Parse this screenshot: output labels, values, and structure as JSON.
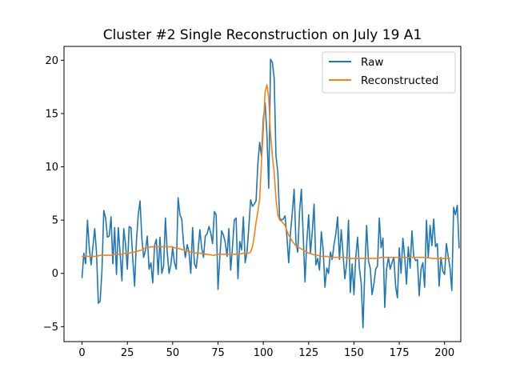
{
  "chart_data": {
    "type": "line",
    "title": "Cluster #2 Single Reconstruction on July 19 A1",
    "xlabel": "",
    "ylabel": "",
    "xlim": [
      -9.95,
      208.95
    ],
    "ylim": [
      -6.4,
      21.3
    ],
    "xticks": [
      0,
      25,
      50,
      75,
      100,
      125,
      150,
      175,
      200
    ],
    "yticks": [
      -5,
      0,
      5,
      10,
      15,
      20
    ],
    "ytick_labels": [
      "−5",
      "0",
      "5",
      "10",
      "15",
      "20"
    ],
    "grid": false,
    "legend_position": "top-right",
    "series": [
      {
        "name": "Raw",
        "color": "#1f77b4",
        "values": [
          -0.4,
          1.9,
          0.9,
          5.0,
          2.4,
          0.8,
          2.5,
          4.2,
          1.9,
          -2.8,
          -2.6,
          0.3,
          5.9,
          5.2,
          3.4,
          3.5,
          5.3,
          0.9,
          4.3,
          -0.1,
          4.3,
          1.9,
          -0.7,
          4.2,
          2.7,
          0.4,
          4.4,
          4.3,
          1.3,
          -1.2,
          3.0,
          5.5,
          6.8,
          3.3,
          1.5,
          2.2,
          3.5,
          0.4,
          1.0,
          -0.9,
          2.6,
          3.2,
          -0.1,
          3.4,
          0.0,
          0.7,
          5.2,
          2.0,
          0.0,
          0.8,
          2.4,
          1.0,
          0.4,
          7.1,
          5.5,
          5.1,
          2.8,
          1.5,
          2.7,
          2.0,
          0.0,
          4.3,
          0.9,
          0.5,
          2.1,
          4.1,
          2.4,
          1.5,
          3.5,
          3.7,
          4.4,
          3.8,
          2.8,
          5.8,
          5.5,
          -1.5,
          1.5,
          4.0,
          3.6,
          2.9,
          1.6,
          4.2,
          0.3,
          2.5,
          5.0,
          5.2,
          -0.5,
          3.0,
          2.2,
          5.3,
          1.0,
          2.0,
          4.3,
          6.9,
          6.3,
          6.5,
          6.8,
          10.3,
          12.3,
          11.0,
          14.5,
          16.0,
          13.0,
          8.0,
          20.1,
          19.8,
          18.3,
          11.0,
          9.5,
          5.2,
          5.0,
          5.1,
          5.4,
          3.5,
          1.0,
          3.8,
          5.7,
          7.9,
          2.9,
          2.0,
          5.8,
          7.9,
          3.6,
          -0.8,
          3.0,
          5.5,
          1.9,
          3.9,
          6.5,
          0.8,
          1.4,
          0.3,
          3.9,
          2.3,
          -1.3,
          0.5,
          0.0,
          2.0,
          1.3,
          2.7,
          3.7,
          5.3,
          1.3,
          4.1,
          1.8,
          -0.5,
          1.0,
          5.0,
          -1.8,
          0.9,
          -2.0,
          1.5,
          3.4,
          0.5,
          -0.9,
          -5.1,
          0.3,
          4.5,
          1.2,
          0.5,
          -2.0,
          -1.0,
          0.4,
          0.7,
          5.2,
          2.4,
          3.3,
          -3.2,
          0.4,
          1.5,
          0.4,
          1.0,
          1.5,
          -1.2,
          -2.3,
          2.4,
          0.0,
          3.3,
          1.5,
          -1.0,
          2.5,
          0.5,
          4.0,
          1.6,
          1.2,
          1.3,
          -2.1,
          0.4,
          1.0,
          -1.3,
          5.0,
          1.5,
          4.5,
          2.6,
          5.1,
          2.5,
          2.8,
          -1.2,
          1.5,
          0.2,
          -0.1,
          2.8,
          1.6,
          0.5,
          -1.6,
          6.2,
          5.5,
          6.4,
          2.4
        ]
      },
      {
        "name": "Reconstructed",
        "color": "#ff7f0e",
        "values": [
          1.6,
          1.6,
          1.6,
          1.6,
          1.6,
          1.6,
          1.6,
          1.6,
          1.6,
          1.65,
          1.7,
          1.7,
          1.7,
          1.7,
          1.7,
          1.7,
          1.7,
          1.75,
          1.8,
          1.8,
          1.8,
          1.8,
          1.8,
          1.85,
          1.9,
          1.9,
          1.9,
          1.95,
          2.0,
          2.0,
          2.05,
          2.1,
          2.15,
          2.2,
          2.3,
          2.4,
          2.4,
          2.45,
          2.5,
          2.5,
          2.5,
          2.5,
          2.5,
          2.5,
          2.5,
          2.5,
          2.5,
          2.5,
          2.5,
          2.5,
          2.5,
          2.4,
          2.4,
          2.35,
          2.3,
          2.25,
          2.2,
          2.1,
          2.1,
          2.0,
          2.0,
          2.0,
          1.95,
          1.9,
          1.9,
          1.9,
          1.85,
          1.85,
          1.8,
          1.8,
          1.75,
          1.75,
          1.7,
          1.7,
          1.75,
          1.8,
          1.8,
          1.8,
          1.8,
          1.8,
          1.8,
          1.8,
          1.8,
          1.8,
          1.8,
          1.8,
          1.8,
          1.8,
          1.85,
          1.9,
          1.9,
          1.9,
          1.9,
          2.0,
          2.5,
          3.5,
          4.8,
          5.8,
          7.0,
          10.5,
          13.5,
          17.0,
          17.7,
          16.5,
          13.0,
          11.0,
          9.5,
          7.0,
          5.5,
          5.0,
          4.9,
          4.7,
          4.5,
          4.0,
          3.6,
          3.3,
          3.0,
          2.8,
          2.6,
          2.5,
          2.4,
          2.3,
          2.2,
          2.1,
          2.0,
          1.9,
          1.85,
          1.8,
          1.75,
          1.7,
          1.7,
          1.65,
          1.6,
          1.6,
          1.6,
          1.6,
          1.55,
          1.5,
          1.5,
          1.5,
          1.5,
          1.5,
          1.5,
          1.5,
          1.5,
          1.5,
          1.45,
          1.45,
          1.4,
          1.4,
          1.4,
          1.4,
          1.4,
          1.4,
          1.4,
          1.4,
          1.4,
          1.4,
          1.4,
          1.4,
          1.4,
          1.4,
          1.4,
          1.4,
          1.45,
          1.5,
          1.5,
          1.5,
          1.5,
          1.5,
          1.5,
          1.5,
          1.5,
          1.5,
          1.5,
          1.5,
          1.5,
          1.5,
          1.5,
          1.5,
          1.5,
          1.5,
          1.5,
          1.5,
          1.5,
          1.5,
          1.5,
          1.5,
          1.5,
          1.5,
          1.5,
          1.45,
          1.45,
          1.4,
          1.4,
          1.4,
          1.4,
          1.4,
          1.4,
          1.4,
          1.4,
          1.4,
          1.4,
          1.4
        ]
      }
    ]
  }
}
